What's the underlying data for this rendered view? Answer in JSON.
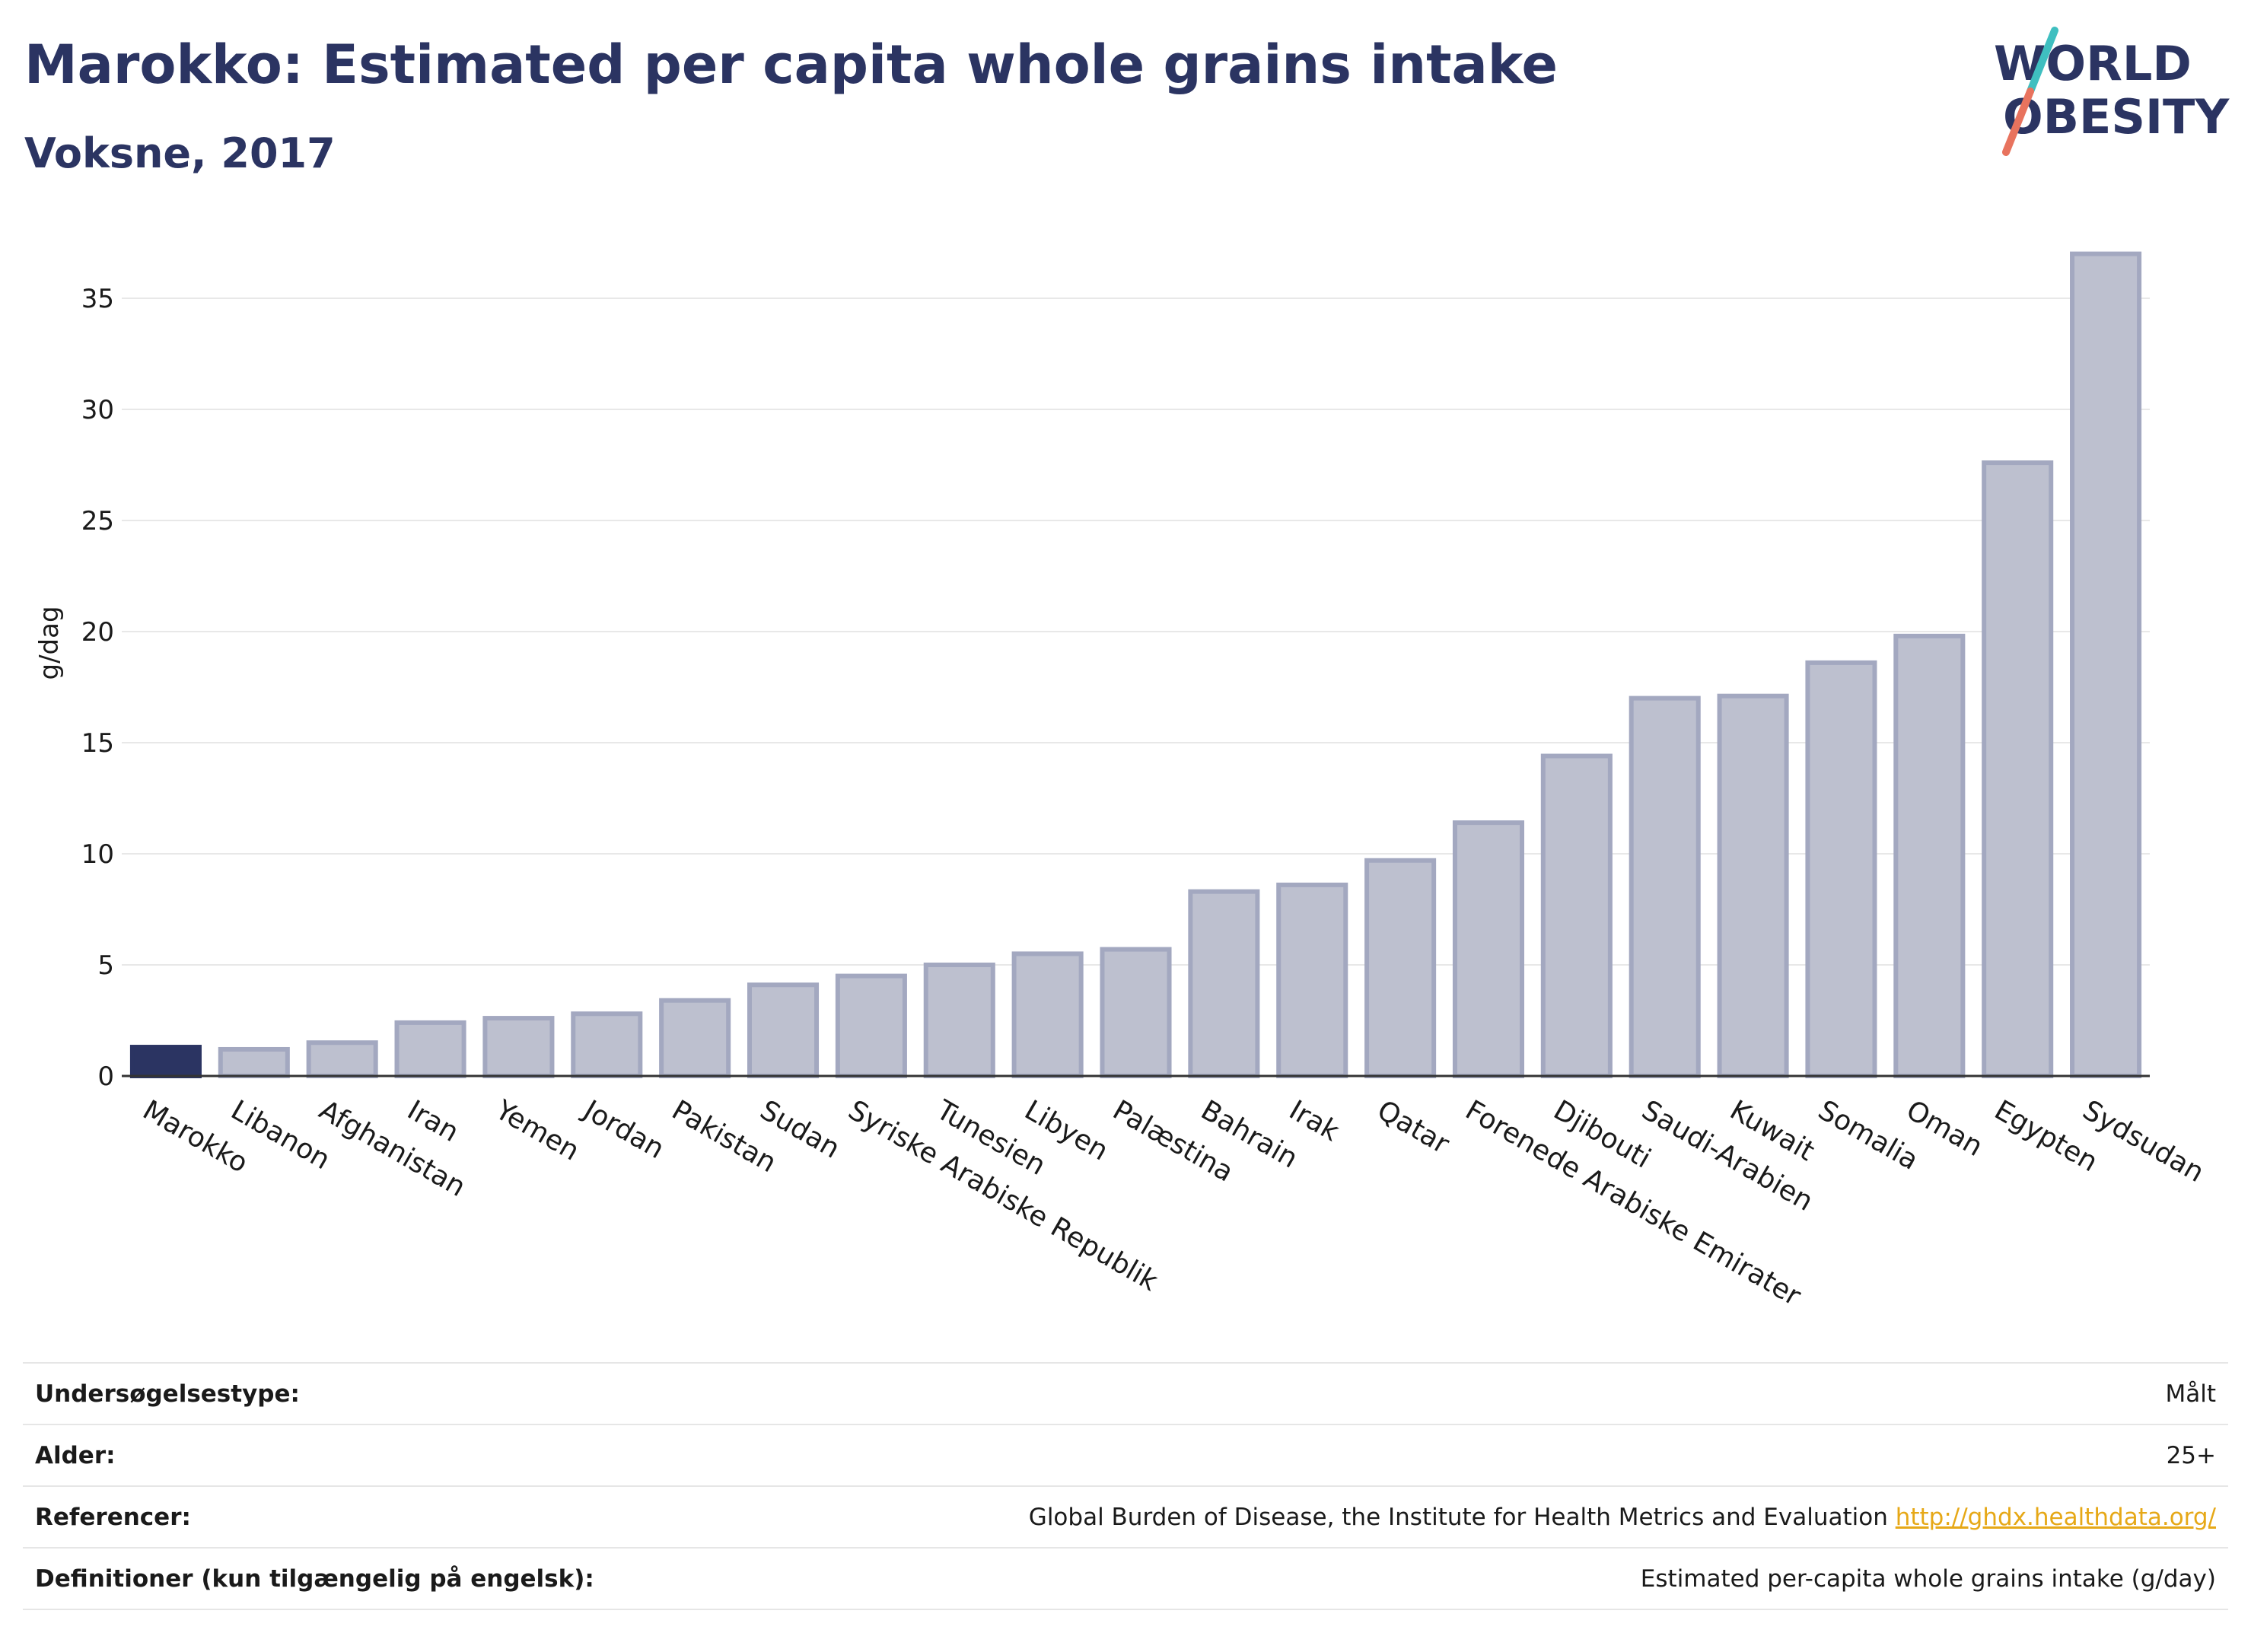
{
  "header": {
    "title": "Marokko: Estimated per capita whole grains intake",
    "subtitle": "Voksne, 2017",
    "logo_text": "WORLD OBESITY"
  },
  "colors": {
    "title": "#2b3462",
    "highlight_bar": "#2b3462",
    "bar_fill": "#bdc0cf",
    "bar_stroke": "#a3a8c0",
    "gridline": "#e8e8e8",
    "axis": "#333333",
    "link": "#e6a817",
    "logo_teal": "#3fbfc0",
    "logo_coral": "#e8735e"
  },
  "chart_data": {
    "type": "bar",
    "title": "Marokko: Estimated per capita whole grains intake",
    "subtitle": "Voksne, 2017",
    "xlabel": "",
    "ylabel": "g/dag",
    "ylim": [
      0,
      37.5
    ],
    "yticks": [
      0,
      5,
      10,
      15,
      20,
      25,
      30,
      35
    ],
    "grid": true,
    "legend": "none",
    "highlight": "Marokko",
    "categories": [
      "Marokko",
      "Libanon",
      "Afghanistan",
      "Iran",
      "Yemen",
      "Jordan",
      "Pakistan",
      "Sudan",
      "Syriske Arabiske Republik",
      "Tunesien",
      "Libyen",
      "Palæstina",
      "Bahrain",
      "Irak",
      "Qatar",
      "Forenede Arabiske Emirater",
      "Djibouti",
      "Saudi-Arabien",
      "Kuwait",
      "Somalia",
      "Oman",
      "Egypten",
      "Sydsudan"
    ],
    "values": [
      1.3,
      1.2,
      1.5,
      2.4,
      2.6,
      2.8,
      3.4,
      4.1,
      4.5,
      5.0,
      5.5,
      5.7,
      8.3,
      8.6,
      9.7,
      11.4,
      14.4,
      17.0,
      17.1,
      18.6,
      19.8,
      27.6,
      37.0
    ]
  },
  "meta": [
    {
      "label": "Undersøgelsestype:",
      "value": "Målt"
    },
    {
      "label": "Alder:",
      "value": "25+"
    },
    {
      "label": "Referencer:",
      "value": "Global Burden of Disease, the Institute for Health Metrics and Evaluation",
      "link": "http://ghdx.healthdata.org/"
    },
    {
      "label": "Definitioner (kun tilgængelig på engelsk):",
      "value": "Estimated per-capita whole grains intake (g/day)"
    }
  ]
}
